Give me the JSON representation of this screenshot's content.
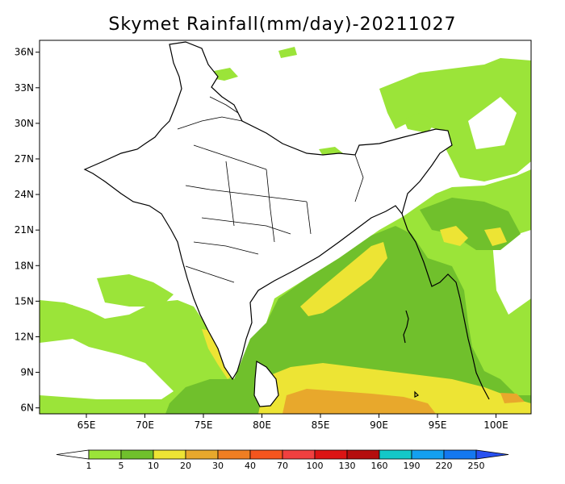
{
  "title": "Skymet Rainfall(mm/day)-20211027",
  "map": {
    "lon_range": [
      61,
      103
    ],
    "lat_range": [
      5.5,
      37
    ],
    "lat_ticks": [
      "36N",
      "33N",
      "30N",
      "27N",
      "24N",
      "21N",
      "18N",
      "15N",
      "12N",
      "9N",
      "6N"
    ],
    "lon_ticks": [
      "65E",
      "70E",
      "75E",
      "80E",
      "85E",
      "90E",
      "95E",
      "100E"
    ],
    "lat_values": [
      36,
      33,
      30,
      27,
      24,
      21,
      18,
      15,
      12,
      9,
      6
    ],
    "lon_values": [
      65,
      70,
      75,
      80,
      85,
      90,
      95,
      100
    ],
    "land_color": "#ffffff",
    "border_color": "#000000"
  },
  "colorbar": {
    "labels": [
      "1",
      "5",
      "10",
      "20",
      "30",
      "40",
      "70",
      "100",
      "130",
      "160",
      "190",
      "220",
      "250"
    ],
    "colors": [
      "#ffffff",
      "#9be439",
      "#70c02c",
      "#ede434",
      "#e8a82c",
      "#f07e22",
      "#f5551e",
      "#f04040",
      "#dc1414",
      "#b40e0e",
      "#14c8c8",
      "#14a0f0",
      "#1478f0",
      "#2850f0"
    ]
  },
  "rain_areas": [
    {
      "name": "bay-of-bengal-green",
      "level": "5-10",
      "color": "#9be439"
    },
    {
      "name": "bay-of-bengal-darkgreen",
      "level": "10-20",
      "color": "#70c02c"
    },
    {
      "name": "bay-of-bengal-yellow",
      "level": "20-30",
      "color": "#ede434"
    },
    {
      "name": "south-ocean-orange",
      "level": "30-40",
      "color": "#e8a82c"
    },
    {
      "name": "arabian-sea-green",
      "level": "5-10",
      "color": "#9be439"
    },
    {
      "name": "kerala-yellow",
      "level": "20-30",
      "color": "#ede434"
    },
    {
      "name": "myanmar-green",
      "level": "5-10",
      "color": "#9be439"
    },
    {
      "name": "northeast-green",
      "level": "5-10",
      "color": "#9be439"
    }
  ]
}
